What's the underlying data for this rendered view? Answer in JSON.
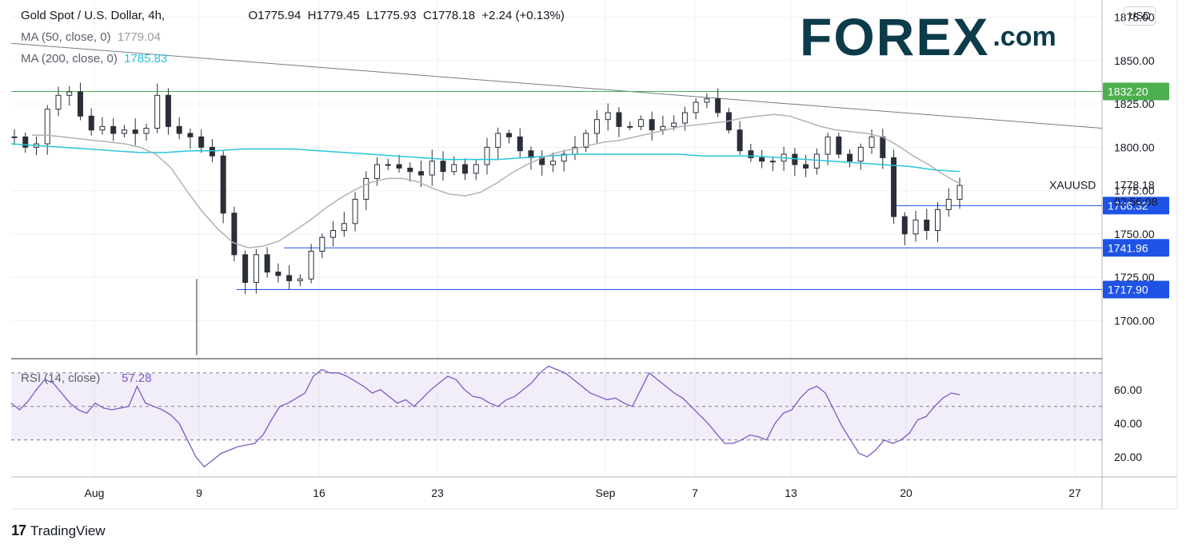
{
  "header": {
    "symbol": "Gold Spot / U.S. Dollar, 4h,",
    "open": "O1775.94",
    "high": "H1779.45",
    "low": "L1775.93",
    "close": "C1778.18",
    "change": "+2.24 (+0.13%)",
    "ma50_label": "MA (50, close, 0)",
    "ma50_value": "1779.04",
    "ma200_label": "MA (200, close, 0)",
    "ma200_value": "1785.83",
    "currency": "USD"
  },
  "logo": {
    "main": "FOREX",
    "suffix": ".com"
  },
  "branding": {
    "tv_label": "TradingView"
  },
  "chart_data": [
    {
      "type": "candlestick",
      "title": "Gold Spot / U.S. Dollar, 4h",
      "ylim": [
        1678,
        1885
      ],
      "y_ticks": [
        1700,
        1725,
        1750,
        1775,
        1800,
        1825,
        1850,
        1875
      ],
      "y_tick_labels": [
        "1700.00",
        "1725.00",
        "1750.00",
        "1775.00",
        "1800.00",
        "1825.00",
        "1850.00",
        "1875.00"
      ],
      "x_tick_labels": [
        "Aug",
        "9",
        "16",
        "23",
        "Sep",
        "7",
        "13",
        "20",
        "27"
      ],
      "last_price": {
        "label": "XAUUSD",
        "value": "1778.18",
        "countdown": "02:56:08"
      },
      "levels": [
        {
          "value": 1832.2,
          "label": "1832.20",
          "color": "#4caf50"
        },
        {
          "value": 1766.32,
          "label": "1766.32",
          "color": "#1e53e5"
        },
        {
          "value": 1741.96,
          "label": "1741.96",
          "color": "#1e53e5"
        },
        {
          "value": 1717.9,
          "label": "1717.90",
          "color": "#1e53e5"
        }
      ],
      "trendline": {
        "from": 1860,
        "to": 1811,
        "color": "#787b86"
      },
      "close_path": [
        1806,
        1800,
        1802,
        1822,
        1830,
        1832,
        1818,
        1810,
        1812,
        1808,
        1810,
        1808,
        1811,
        1830,
        1812,
        1808,
        1806,
        1800,
        1795,
        1762,
        1738,
        1722,
        1738,
        1728,
        1726,
        1723,
        1724,
        1740,
        1748,
        1752,
        1756,
        1770,
        1782,
        1790,
        1790,
        1788,
        1786,
        1784,
        1792,
        1786,
        1790,
        1785,
        1790,
        1800,
        1808,
        1806,
        1798,
        1794,
        1790,
        1792,
        1796,
        1800,
        1808,
        1816,
        1820,
        1812,
        1812,
        1816,
        1810,
        1812,
        1814,
        1820,
        1826,
        1828,
        1820,
        1810,
        1798,
        1794,
        1792,
        1792,
        1796,
        1790,
        1788,
        1796,
        1806,
        1796,
        1792,
        1800,
        1806,
        1794,
        1760,
        1750,
        1758,
        1752,
        1764,
        1770,
        1778
      ],
      "ma50": [
        1807,
        1807,
        1806,
        1805,
        1804,
        1803,
        1802,
        1800,
        1796,
        1788,
        1775,
        1763,
        1753,
        1745,
        1742,
        1743,
        1746,
        1752,
        1758,
        1765,
        1771,
        1776,
        1780,
        1782,
        1782,
        1780,
        1776,
        1773,
        1772,
        1774,
        1779,
        1785,
        1790,
        1794,
        1797,
        1799,
        1801,
        1803,
        1804,
        1806,
        1808,
        1810,
        1812,
        1813,
        1814,
        1815,
        1817,
        1818,
        1819,
        1818,
        1815,
        1812,
        1810,
        1809,
        1808,
        1806,
        1801,
        1795,
        1790,
        1784,
        1779
      ],
      "ma200": [
        1802,
        1801,
        1800,
        1799,
        1798,
        1797,
        1797,
        1798,
        1798,
        1799,
        1799,
        1799,
        1798,
        1797,
        1796,
        1795,
        1794,
        1793,
        1793,
        1793,
        1794,
        1795,
        1796,
        1796,
        1796,
        1796,
        1796,
        1795,
        1795,
        1795,
        1794,
        1793,
        1792,
        1791,
        1790,
        1789,
        1787,
        1786
      ]
    },
    {
      "type": "line",
      "title": "RSI (14, close)",
      "series": [
        {
          "name": "RSI (14, close)",
          "last_value": "57.28"
        }
      ],
      "ylim": [
        8,
        78
      ],
      "y_ticks": [
        20,
        40,
        60
      ],
      "y_tick_labels": [
        "20.00",
        "40.00",
        "60.00"
      ],
      "bands": {
        "upper": 70,
        "middle": 50,
        "lower": 30
      },
      "values": [
        52,
        48,
        53,
        60,
        66,
        64,
        58,
        52,
        48,
        46,
        52,
        49,
        48,
        49,
        50,
        62,
        52,
        50,
        48,
        45,
        40,
        30,
        20,
        14,
        18,
        22,
        24,
        26,
        27,
        28,
        33,
        42,
        50,
        52,
        55,
        58,
        68,
        72,
        70,
        70,
        68,
        65,
        62,
        58,
        60,
        56,
        52,
        54,
        50,
        55,
        60,
        64,
        68,
        66,
        60,
        56,
        55,
        52,
        50,
        54,
        56,
        60,
        64,
        70,
        74,
        72,
        70,
        66,
        62,
        58,
        56,
        54,
        55,
        52,
        50,
        60,
        70,
        66,
        62,
        58,
        55,
        50,
        45,
        40,
        34,
        28,
        28,
        30,
        33,
        32,
        30,
        40,
        46,
        48,
        55,
        60,
        62,
        58,
        48,
        38,
        30,
        22,
        20,
        24,
        30,
        28,
        30,
        34,
        42,
        44,
        50,
        55,
        58,
        57
      ]
    }
  ]
}
